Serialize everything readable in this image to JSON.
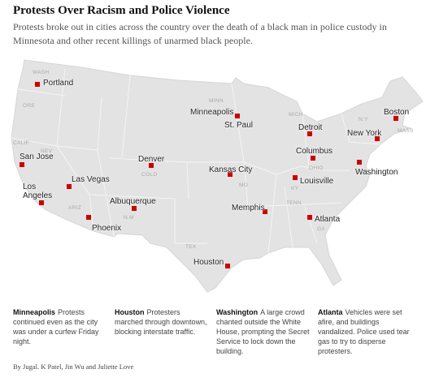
{
  "header": {
    "title": "Protests Over Racism and Police Violence",
    "subtitle": "Protests broke out in cities across the country over the death of a black man in police custody in Minnesota and other recent killings of unarmed black people."
  },
  "map": {
    "cities": [
      "Portland",
      "Minneapolis",
      "St. Paul",
      "Boston",
      "Detroit",
      "New York",
      "San Jose",
      "Denver",
      "Columbus",
      "Washington",
      "Las Vegas",
      "Kansas City",
      "Louisville",
      "Los Angeles",
      "Albuquerque",
      "Memphis",
      "Atlanta",
      "Phoenix",
      "Houston"
    ],
    "states": [
      "WASH",
      "ORE",
      "CALIF",
      "NEV",
      "ARIZ",
      "N.M",
      "COLO",
      "TEX",
      "MO",
      "KY",
      "TENN",
      "GA",
      "OHIO",
      "MICH",
      "MINN",
      "N.Y",
      "MASS"
    ]
  },
  "notes": [
    {
      "place": "Minneapolis",
      "text": "Protests continued even as the city was under a curfew Friday night."
    },
    {
      "place": "Houston",
      "text": "Protesters marched through downtown, blocking interstate traffic."
    },
    {
      "place": "Washington",
      "text": "A large crowd chanted outside the White House, prompting the Secret Service to lock down the building."
    },
    {
      "place": "Atlanta",
      "text": "Vehicles were set afire, and buildings vandalized. Police used tear gas to try to disperse protesters."
    }
  ],
  "byline": "By Jugal. K Patel, Jin Wu and Juliette Love"
}
